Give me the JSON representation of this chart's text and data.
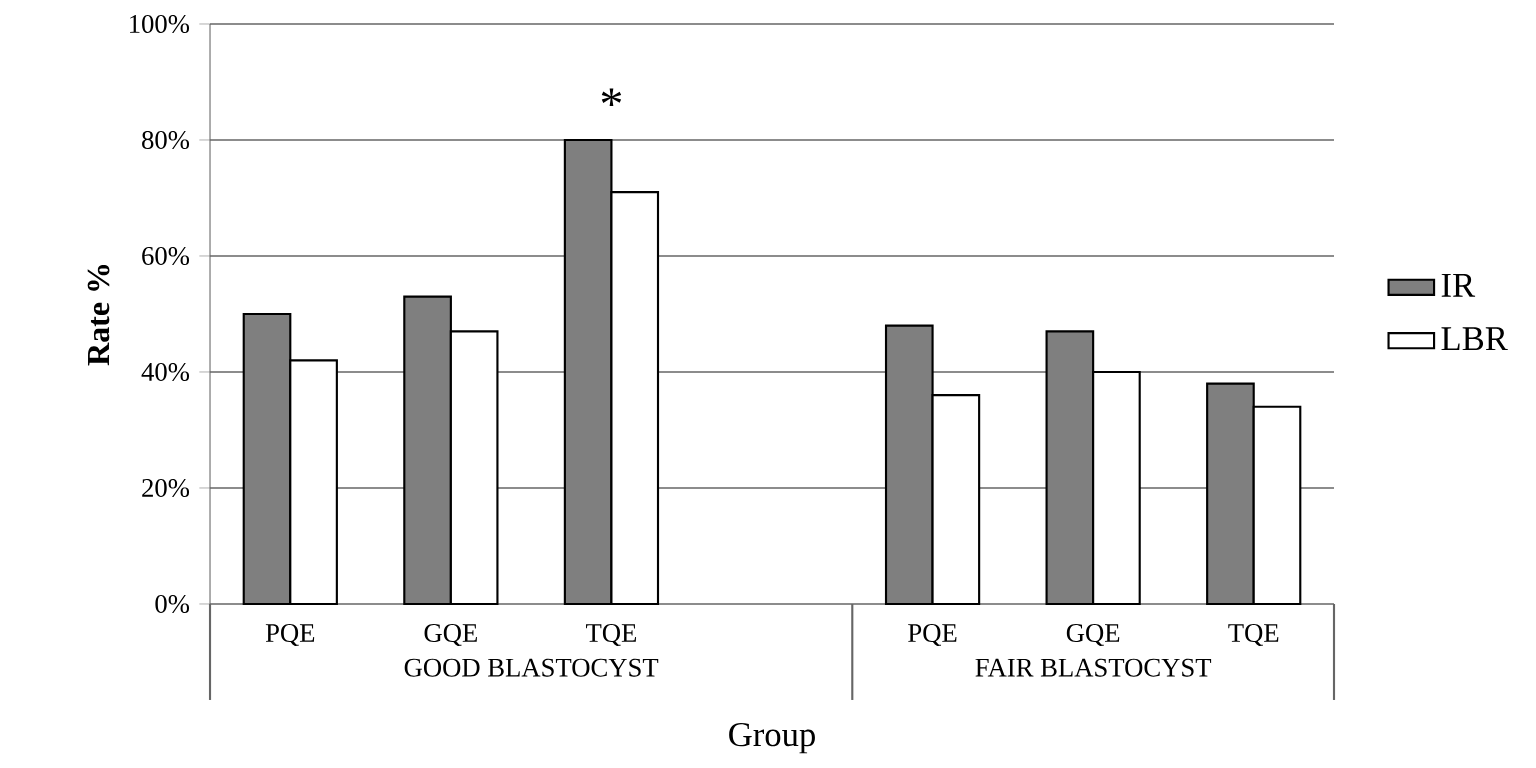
{
  "chart_data": {
    "type": "bar",
    "xlabel": "Group",
    "ylabel": "Rate %",
    "categories": [
      "PQE",
      "GQE",
      "TQE",
      null,
      "PQE",
      "GQE",
      "TQE"
    ],
    "series": [
      {
        "name": "IR",
        "color": "#7f7f7f",
        "values": [
          50,
          53,
          80,
          null,
          48,
          47,
          38
        ]
      },
      {
        "name": "LBR",
        "color": "#ffffff",
        "values": [
          42,
          47,
          71,
          null,
          36,
          40,
          34
        ]
      }
    ],
    "ylim": [
      0,
      100
    ],
    "yticks": [
      {
        "value": 0,
        "label": "0%"
      },
      {
        "value": 20,
        "label": "20%"
      },
      {
        "value": 40,
        "label": "40%"
      },
      {
        "value": 60,
        "label": "60%"
      },
      {
        "value": 80,
        "label": "80%"
      },
      {
        "value": 100,
        "label": "100%"
      }
    ],
    "grid": "y",
    "legend": "right",
    "annotations": [
      "GOOD  BLASTOCYST",
      "FAIR BLASTOCYST",
      "*"
    ]
  }
}
